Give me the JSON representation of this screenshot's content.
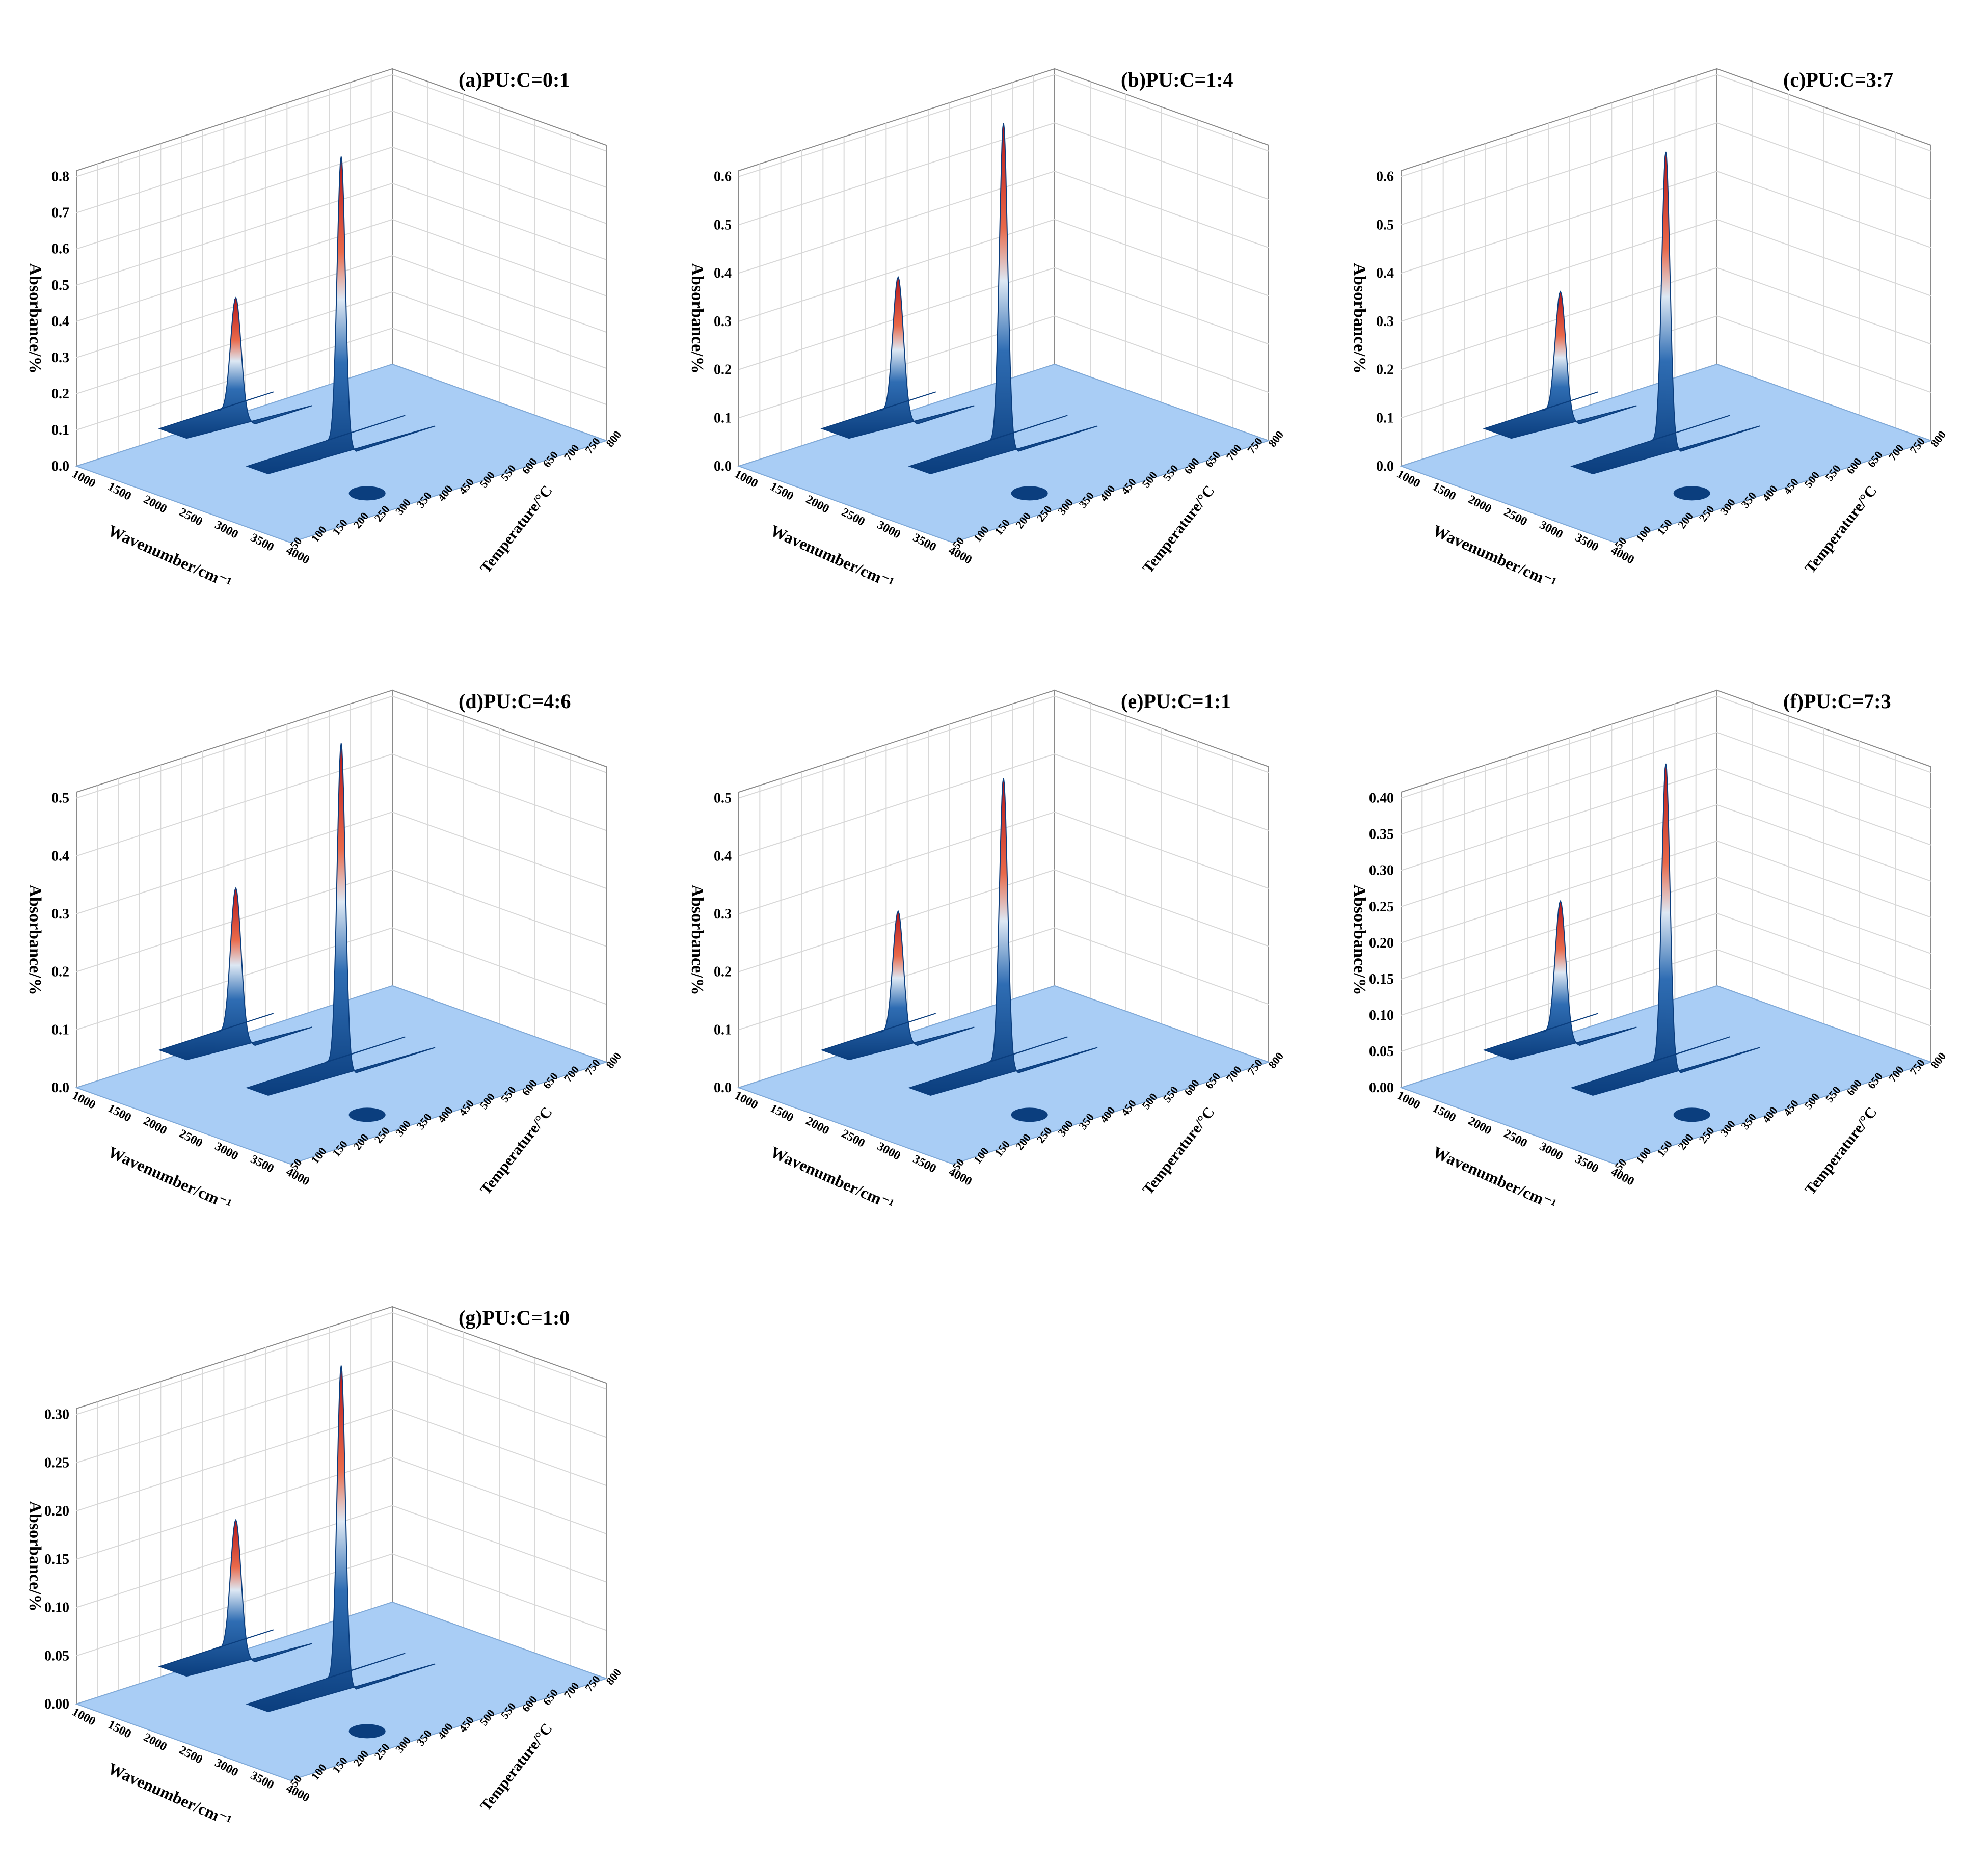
{
  "figure": {
    "chart_data": [
      {
        "type": "surface3d",
        "panel": "a",
        "title": "(a)PU:C=0:1",
        "xlabel": "Wavenumber/cm⁻¹",
        "ylabel": "Absorbance/%",
        "zlabel": "Temperature/°C",
        "xlim": [
          1000,
          4000
        ],
        "ylim": [
          0,
          0.8
        ],
        "zlim": [
          50,
          800
        ],
        "x_ticks": [
          "1000",
          "1500",
          "2000",
          "2500",
          "3000",
          "3500",
          "4000"
        ],
        "y_ticks": [
          "0.0",
          "0.1",
          "0.2",
          "0.3",
          "0.4",
          "0.5",
          "0.6",
          "0.7",
          "0.8"
        ],
        "z_ticks": [
          "50",
          "100",
          "150",
          "200",
          "250",
          "300",
          "350",
          "400",
          "450",
          "500",
          "550",
          "600",
          "650",
          "700",
          "750",
          "800"
        ],
        "peaks": [
          {
            "wavenumber": 1050,
            "temperature": 420,
            "absorbance": 0.33
          },
          {
            "wavenumber": 2350,
            "temperature": 450,
            "absorbance": 0.8
          },
          {
            "wavenumber": 3600,
            "temperature": 300,
            "absorbance": 0.02
          }
        ]
      },
      {
        "type": "surface3d",
        "panel": "b",
        "title": "(b)PU:C=1:4",
        "xlabel": "Wavenumber/cm⁻¹",
        "ylabel": "Absorbance/%",
        "zlabel": "Temperature/°C",
        "xlim": [
          1000,
          4000
        ],
        "ylim": [
          0,
          0.6
        ],
        "zlim": [
          50,
          800
        ],
        "x_ticks": [
          "1000",
          "1500",
          "2000",
          "2500",
          "3000",
          "3500",
          "4000"
        ],
        "y_ticks": [
          "0.0",
          "0.1",
          "0.2",
          "0.3",
          "0.4",
          "0.5",
          "0.6"
        ],
        "z_ticks": [
          "50",
          "100",
          "150",
          "200",
          "250",
          "300",
          "350",
          "400",
          "450",
          "500",
          "550",
          "600",
          "650",
          "700",
          "750",
          "800"
        ],
        "peaks": [
          {
            "wavenumber": 1050,
            "temperature": 420,
            "absorbance": 0.29
          },
          {
            "wavenumber": 2350,
            "temperature": 450,
            "absorbance": 0.67
          },
          {
            "wavenumber": 3600,
            "temperature": 300,
            "absorbance": 0.02
          }
        ]
      },
      {
        "type": "surface3d",
        "panel": "c",
        "title": "(c)PU:C=3:7",
        "xlabel": "Wavenumber/cm⁻¹",
        "ylabel": "Absorbance/%",
        "zlabel": "Temperature/°C",
        "xlim": [
          1000,
          4000
        ],
        "ylim": [
          0,
          0.6
        ],
        "zlim": [
          50,
          800
        ],
        "x_ticks": [
          "1000",
          "1500",
          "2000",
          "2500",
          "3000",
          "3500",
          "4000"
        ],
        "y_ticks": [
          "0.0",
          "0.1",
          "0.2",
          "0.3",
          "0.4",
          "0.5",
          "0.6"
        ],
        "z_ticks": [
          "50",
          "100",
          "150",
          "200",
          "250",
          "300",
          "350",
          "400",
          "450",
          "500",
          "550",
          "600",
          "650",
          "700",
          "750",
          "800"
        ],
        "peaks": [
          {
            "wavenumber": 1050,
            "temperature": 420,
            "absorbance": 0.26
          },
          {
            "wavenumber": 2350,
            "temperature": 450,
            "absorbance": 0.61
          },
          {
            "wavenumber": 3600,
            "temperature": 300,
            "absorbance": 0.02
          }
        ]
      },
      {
        "type": "surface3d",
        "panel": "d",
        "title": "(d)PU:C=4:6",
        "xlabel": "Wavenumber/cm⁻¹",
        "ylabel": "Absorbance/%",
        "zlabel": "Temperature/°C",
        "xlim": [
          1000,
          4000
        ],
        "ylim": [
          0,
          0.55
        ],
        "zlim": [
          50,
          800
        ],
        "x_ticks": [
          "1000",
          "1500",
          "2000",
          "2500",
          "3000",
          "3500",
          "4000"
        ],
        "y_ticks": [
          "0.0",
          "0.1",
          "0.2",
          "0.3",
          "0.4",
          "0.5"
        ],
        "z_ticks": [
          "50",
          "100",
          "150",
          "200",
          "250",
          "300",
          "350",
          "400",
          "450",
          "500",
          "550",
          "600",
          "650",
          "700",
          "750",
          "800"
        ],
        "peaks": [
          {
            "wavenumber": 1050,
            "temperature": 420,
            "absorbance": 0.26
          },
          {
            "wavenumber": 2350,
            "temperature": 450,
            "absorbance": 0.56
          },
          {
            "wavenumber": 3600,
            "temperature": 300,
            "absorbance": 0.02
          }
        ]
      },
      {
        "type": "surface3d",
        "panel": "e",
        "title": "(e)PU:C=1:1",
        "xlabel": "Wavenumber/cm⁻¹",
        "ylabel": "Absorbance/%",
        "zlabel": "Temperature/°C",
        "xlim": [
          1000,
          4000
        ],
        "ylim": [
          0,
          0.5
        ],
        "zlim": [
          50,
          800
        ],
        "x_ticks": [
          "1000",
          "1500",
          "2000",
          "2500",
          "3000",
          "3500",
          "4000"
        ],
        "y_ticks": [
          "0.0",
          "0.1",
          "0.2",
          "0.3",
          "0.4",
          "0.5"
        ],
        "z_ticks": [
          "50",
          "100",
          "150",
          "200",
          "250",
          "300",
          "350",
          "400",
          "450",
          "500",
          "550",
          "600",
          "650",
          "700",
          "750",
          "800"
        ],
        "peaks": [
          {
            "wavenumber": 1050,
            "temperature": 420,
            "absorbance": 0.22
          },
          {
            "wavenumber": 2350,
            "temperature": 450,
            "absorbance": 0.5
          },
          {
            "wavenumber": 3600,
            "temperature": 300,
            "absorbance": 0.02
          }
        ]
      },
      {
        "type": "surface3d",
        "panel": "f",
        "title": "(f)PU:C=7:3",
        "xlabel": "Wavenumber/cm⁻¹",
        "ylabel": "Absorbance/%",
        "zlabel": "Temperature/°C",
        "xlim": [
          1000,
          4000
        ],
        "ylim": [
          0,
          0.42
        ],
        "zlim": [
          50,
          800
        ],
        "x_ticks": [
          "1000",
          "1500",
          "2000",
          "2500",
          "3000",
          "3500",
          "4000"
        ],
        "y_ticks": [
          "0.00",
          "0.05",
          "0.10",
          "0.15",
          "0.20",
          "0.25",
          "0.30",
          "0.35",
          "0.40"
        ],
        "z_ticks": [
          "50",
          "100",
          "150",
          "200",
          "250",
          "300",
          "350",
          "400",
          "450",
          "500",
          "550",
          "600",
          "650",
          "700",
          "750",
          "800"
        ],
        "peaks": [
          {
            "wavenumber": 1050,
            "temperature": 420,
            "absorbance": 0.19
          },
          {
            "wavenumber": 2350,
            "temperature": 450,
            "absorbance": 0.42
          },
          {
            "wavenumber": 3600,
            "temperature": 300,
            "absorbance": 0.02
          }
        ]
      },
      {
        "type": "surface3d",
        "panel": "g",
        "title": "(g)PU:C=1:0",
        "xlabel": "Wavenumber/cm⁻¹",
        "ylabel": "Absorbance/%",
        "zlabel": "Temperature/°C",
        "xlim": [
          1000,
          4000
        ],
        "ylim": [
          0,
          0.33
        ],
        "zlim": [
          50,
          800
        ],
        "x_ticks": [
          "1000",
          "1500",
          "2000",
          "2500",
          "3000",
          "3500",
          "4000"
        ],
        "y_ticks": [
          "0.00",
          "0.05",
          "0.10",
          "0.15",
          "0.20",
          "0.25",
          "0.30"
        ],
        "z_ticks": [
          "50",
          "100",
          "150",
          "200",
          "250",
          "300",
          "350",
          "400",
          "450",
          "500",
          "550",
          "600",
          "650",
          "700",
          "750",
          "800"
        ],
        "peaks": [
          {
            "wavenumber": 1050,
            "temperature": 420,
            "absorbance": 0.14
          },
          {
            "wavenumber": 2350,
            "temperature": 450,
            "absorbance": 0.33
          },
          {
            "wavenumber": 3600,
            "temperature": 300,
            "absorbance": 0.02
          }
        ]
      }
    ]
  },
  "colors": {
    "floor": "#a9cdf5",
    "peak_dark": "#0b3e7e",
    "peak_mid": "#2f6db3",
    "peak_light": "#dde8f4",
    "peak_hot": "#e9694a",
    "peak_top": "#b4141a"
  }
}
